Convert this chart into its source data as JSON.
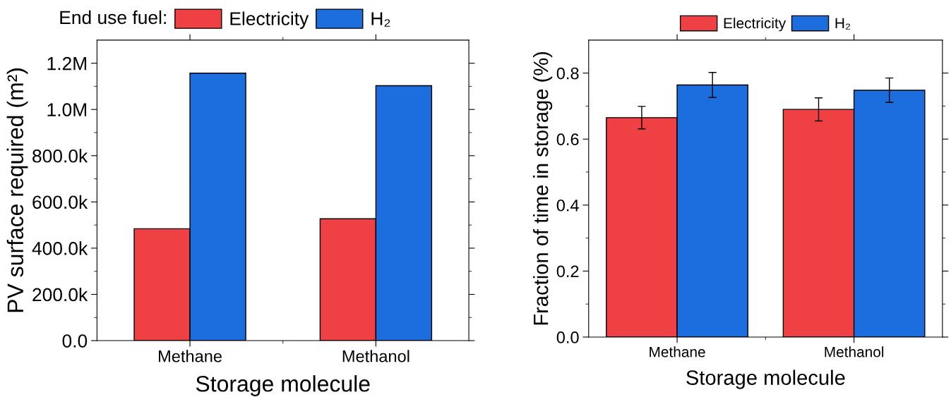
{
  "chart_data": [
    {
      "type": "bar",
      "categories": [
        "Methane",
        "Methanol"
      ],
      "xlabel": "Storage molecule",
      "ylabel": "PV surface required (m²)",
      "legend_title": "End use fuel:",
      "legend": "top",
      "series": [
        {
          "name": "Electricity",
          "color": "#ef4043",
          "values": [
            484000,
            527000
          ]
        },
        {
          "name": "H₂",
          "color": "#1c6ede",
          "values": [
            1157000,
            1103000
          ]
        }
      ],
      "ylim": [
        0,
        1300000
      ],
      "yticks": [
        {
          "value": 0,
          "label": "0.0"
        },
        {
          "value": 200000,
          "label": "200.0k"
        },
        {
          "value": 400000,
          "label": "400.0k"
        },
        {
          "value": 600000,
          "label": "600.0k"
        },
        {
          "value": 800000,
          "label": "800.0k"
        },
        {
          "value": 1000000,
          "label": "1.0M"
        },
        {
          "value": 1200000,
          "label": "1.2M"
        }
      ],
      "grid": false
    },
    {
      "type": "bar",
      "categories": [
        "Methane",
        "Methanol"
      ],
      "xlabel": "Storage molecule",
      "ylabel": "Fraction of time in storage (%)",
      "legend": "top",
      "series": [
        {
          "name": "Electricity",
          "color": "#ef4043",
          "values": [
            0.665,
            0.69
          ],
          "errors": [
            0.034,
            0.035
          ]
        },
        {
          "name": "H₂",
          "color": "#1c6ede",
          "values": [
            0.764,
            0.748
          ],
          "errors": [
            0.038,
            0.037
          ]
        }
      ],
      "ylim": [
        0,
        0.9
      ],
      "yticks": [
        {
          "value": 0,
          "label": "0.0"
        },
        {
          "value": 0.2,
          "label": "0.2"
        },
        {
          "value": 0.4,
          "label": "0.4"
        },
        {
          "value": 0.6,
          "label": "0.6"
        },
        {
          "value": 0.8,
          "label": "0.8"
        }
      ],
      "grid": false
    }
  ]
}
